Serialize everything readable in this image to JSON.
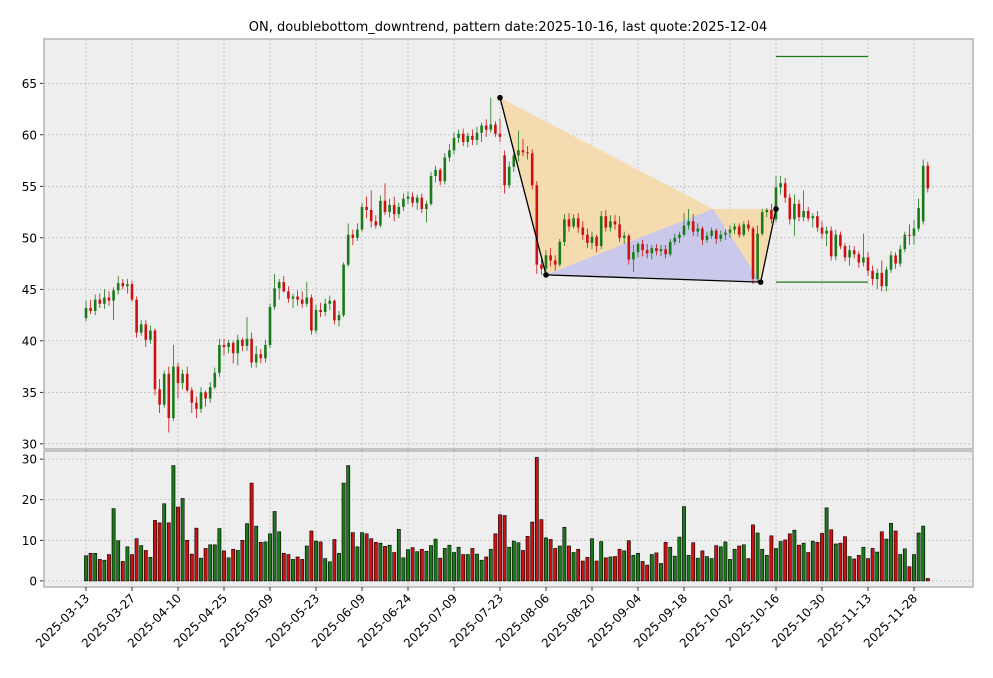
{
  "chart_data": {
    "type": "candlestick",
    "title": "ON, doublebottom_downtrend, pattern date:2025-10-16, last quote:2025-12-04",
    "price_ylim": [
      29.5,
      69.3
    ],
    "price_yticks": [
      30,
      35,
      40,
      45,
      50,
      55,
      60,
      65
    ],
    "volume_ylim": [
      -1.5,
      32
    ],
    "volume_yticks": [
      0,
      10,
      20,
      30
    ],
    "x_date_ticks": [
      "2025-03-13",
      "2025-03-27",
      "2025-04-10",
      "2025-04-25",
      "2025-05-09",
      "2025-05-23",
      "2025-06-09",
      "2025-06-24",
      "2025-07-09",
      "2025-07-23",
      "2025-08-06",
      "2025-08-20",
      "2025-09-04",
      "2025-09-18",
      "2025-10-02",
      "2025-10-16",
      "2025-10-30",
      "2025-11-13",
      "2025-11-28"
    ],
    "grid": true,
    "start_date": "2025-03-13",
    "candles": [
      [
        42.2,
        43.9,
        41.9,
        43.2,
        6.2
      ],
      [
        43.2,
        44.0,
        42.6,
        42.9,
        6.8
      ],
      [
        42.9,
        44.5,
        42.5,
        44.0,
        6.8
      ],
      [
        44.0,
        44.6,
        43.2,
        43.6,
        5.3
      ],
      [
        43.6,
        45.0,
        43.1,
        44.2,
        5.1
      ],
      [
        44.2,
        44.8,
        43.4,
        43.9,
        6.5
      ],
      [
        43.9,
        45.2,
        42.0,
        44.9,
        17.8
      ],
      [
        44.9,
        46.3,
        44.5,
        45.6,
        9.9
      ],
      [
        45.6,
        46.0,
        45.0,
        45.3,
        4.8
      ],
      [
        45.3,
        46.0,
        44.6,
        45.5,
        8.4
      ],
      [
        45.5,
        45.8,
        43.8,
        44.0,
        6.5
      ],
      [
        44.0,
        44.3,
        40.3,
        40.8,
        10.4
      ],
      [
        40.8,
        42.0,
        40.5,
        41.6,
        8.7
      ],
      [
        41.6,
        42.0,
        39.4,
        40.1,
        7.5
      ],
      [
        40.1,
        41.5,
        39.7,
        41.0,
        5.8
      ],
      [
        41.0,
        41.2,
        34.7,
        35.3,
        14.9
      ],
      [
        35.3,
        36.3,
        33.0,
        33.8,
        14.3
      ],
      [
        33.8,
        37.1,
        33.5,
        36.8,
        19.0
      ],
      [
        36.8,
        37.5,
        31.1,
        32.5,
        14.3
      ],
      [
        32.5,
        39.6,
        32.2,
        37.5,
        28.4
      ],
      [
        37.5,
        37.9,
        34.4,
        35.9,
        18.2
      ],
      [
        35.9,
        37.2,
        35.3,
        36.8,
        20.3
      ],
      [
        36.8,
        37.5,
        35.0,
        35.2,
        10.0
      ],
      [
        35.2,
        35.5,
        33.0,
        34.0,
        6.6
      ],
      [
        34.0,
        34.6,
        32.5,
        33.4,
        13.0
      ],
      [
        33.4,
        35.5,
        33.0,
        35.0,
        5.6
      ],
      [
        35.0,
        35.2,
        33.6,
        34.4,
        8.0
      ],
      [
        34.4,
        36.0,
        34.0,
        35.5,
        8.9
      ],
      [
        35.5,
        37.4,
        35.3,
        36.9,
        8.9
      ],
      [
        36.9,
        40.2,
        36.5,
        39.6,
        12.9
      ],
      [
        39.6,
        40.2,
        38.6,
        39.4,
        7.4
      ],
      [
        39.4,
        40.1,
        38.8,
        39.8,
        5.7
      ],
      [
        39.8,
        40.0,
        37.8,
        38.8,
        7.8
      ],
      [
        38.8,
        40.6,
        37.6,
        40.1,
        7.5
      ],
      [
        40.1,
        40.3,
        39.0,
        39.5,
        10.0
      ],
      [
        39.5,
        42.3,
        39.0,
        40.2,
        14.1
      ],
      [
        40.2,
        40.8,
        37.4,
        37.9,
        24.1
      ],
      [
        37.9,
        39.5,
        37.4,
        38.7,
        13.5
      ],
      [
        38.7,
        39.2,
        37.8,
        38.3,
        9.5
      ],
      [
        38.3,
        40.1,
        37.9,
        39.6,
        9.6
      ],
      [
        39.6,
        43.6,
        39.3,
        43.3,
        11.6
      ],
      [
        43.3,
        46.5,
        43.0,
        45.1,
        17.1
      ],
      [
        45.1,
        46.0,
        44.0,
        45.7,
        12.1
      ],
      [
        45.7,
        46.3,
        44.7,
        44.8,
        6.8
      ],
      [
        44.8,
        45.3,
        43.7,
        44.1,
        6.5
      ],
      [
        44.1,
        44.6,
        43.2,
        44.3,
        5.3
      ],
      [
        44.3,
        44.9,
        43.4,
        44.0,
        5.9
      ],
      [
        44.0,
        44.8,
        43.2,
        43.6,
        5.3
      ],
      [
        43.6,
        45.7,
        43.3,
        44.2,
        8.6
      ],
      [
        44.2,
        44.5,
        40.6,
        41.0,
        12.3
      ],
      [
        41.0,
        43.5,
        40.7,
        43.0,
        9.8
      ],
      [
        43.0,
        43.7,
        42.3,
        42.8,
        9.6
      ],
      [
        42.8,
        44.1,
        42.4,
        43.6,
        5.5
      ],
      [
        43.6,
        44.4,
        43.0,
        43.9,
        4.7
      ],
      [
        43.9,
        44.0,
        41.6,
        42.0,
        10.2
      ],
      [
        42.0,
        42.9,
        41.4,
        42.5,
        6.8
      ],
      [
        42.5,
        47.6,
        42.3,
        47.4,
        24.1
      ],
      [
        47.4,
        51.4,
        47.2,
        50.3,
        28.4
      ],
      [
        50.3,
        50.8,
        49.3,
        50.0,
        11.9
      ],
      [
        50.0,
        51.4,
        49.7,
        50.8,
        8.4
      ],
      [
        50.8,
        53.4,
        50.6,
        53.0,
        11.9
      ],
      [
        53.0,
        54.0,
        51.9,
        52.7,
        11.6
      ],
      [
        52.7,
        54.6,
        51.0,
        51.6,
        10.4
      ],
      [
        51.6,
        52.2,
        50.9,
        51.2,
        9.5
      ],
      [
        51.2,
        54.1,
        51.0,
        53.6,
        9.3
      ],
      [
        53.6,
        55.3,
        52.2,
        52.5,
        8.5
      ],
      [
        52.5,
        53.8,
        52.0,
        53.2,
        8.8
      ],
      [
        53.2,
        54.0,
        51.6,
        52.3,
        7.0
      ],
      [
        52.3,
        53.4,
        51.9,
        53.0,
        12.7
      ],
      [
        53.0,
        54.3,
        52.6,
        53.8,
        5.7
      ],
      [
        53.8,
        54.5,
        53.3,
        54.0,
        7.7
      ],
      [
        54.0,
        54.4,
        53.0,
        53.4,
        8.2
      ],
      [
        53.4,
        54.2,
        52.7,
        53.9,
        7.2
      ],
      [
        53.9,
        54.3,
        52.4,
        52.8,
        7.8
      ],
      [
        52.8,
        53.6,
        51.5,
        53.3,
        7.3
      ],
      [
        53.3,
        56.4,
        53.1,
        56.0,
        8.7
      ],
      [
        56.0,
        57.0,
        55.4,
        56.6,
        10.3
      ],
      [
        56.6,
        56.8,
        55.1,
        55.5,
        5.6
      ],
      [
        55.5,
        58.2,
        55.2,
        57.8,
        8.0
      ],
      [
        57.8,
        59.1,
        57.4,
        58.5,
        8.8
      ],
      [
        58.5,
        60.2,
        58.1,
        59.7,
        7.0
      ],
      [
        59.7,
        60.5,
        59.2,
        60.1,
        8.3
      ],
      [
        60.1,
        60.6,
        58.9,
        59.3,
        6.5
      ],
      [
        59.3,
        60.2,
        58.8,
        59.9,
        6.5
      ],
      [
        59.9,
        60.5,
        59.0,
        59.5,
        8.0
      ],
      [
        59.5,
        60.8,
        59.0,
        60.2,
        6.6
      ],
      [
        60.2,
        61.2,
        59.3,
        60.9,
        5.1
      ],
      [
        60.9,
        61.5,
        59.8,
        60.5,
        5.9
      ],
      [
        60.5,
        63.6,
        60.2,
        61.0,
        7.8
      ],
      [
        61.0,
        61.3,
        59.8,
        60.1,
        11.6
      ],
      [
        60.1,
        61.6,
        59.3,
        59.8,
        16.3
      ],
      [
        58.0,
        58.5,
        54.3,
        55.1,
        16.1
      ],
      [
        55.1,
        57.4,
        54.8,
        56.9,
        8.3
      ],
      [
        56.9,
        58.6,
        56.4,
        58.0,
        9.8
      ],
      [
        58.0,
        60.4,
        57.4,
        58.5,
        9.4
      ],
      [
        58.5,
        59.6,
        57.9,
        58.3,
        7.5
      ],
      [
        58.3,
        58.9,
        57.6,
        58.2,
        11.0
      ],
      [
        58.2,
        58.6,
        54.7,
        55.1,
        14.5
      ],
      [
        55.1,
        55.5,
        46.5,
        47.4,
        30.4
      ],
      [
        47.4,
        47.9,
        46.4,
        47.0,
        15.1
      ],
      [
        47.0,
        48.8,
        46.7,
        48.3,
        10.6
      ],
      [
        48.3,
        49.0,
        47.2,
        47.8,
        10.2
      ],
      [
        47.8,
        48.3,
        46.8,
        47.4,
        8.0
      ],
      [
        47.4,
        49.9,
        47.2,
        49.6,
        8.6
      ],
      [
        49.6,
        52.3,
        49.2,
        51.8,
        13.2
      ],
      [
        51.8,
        52.4,
        50.6,
        51.1,
        8.6
      ],
      [
        51.1,
        52.3,
        50.9,
        51.9,
        7.0
      ],
      [
        51.9,
        52.4,
        50.5,
        51.0,
        7.8
      ],
      [
        51.0,
        51.6,
        49.8,
        50.3,
        4.9
      ],
      [
        50.3,
        50.9,
        49.0,
        49.5,
        5.8
      ],
      [
        49.5,
        50.6,
        48.9,
        50.1,
        10.4
      ],
      [
        50.1,
        50.3,
        48.6,
        49.2,
        4.9
      ],
      [
        49.2,
        52.6,
        48.9,
        52.1,
        9.7
      ],
      [
        52.1,
        52.7,
        50.6,
        51.0,
        5.7
      ],
      [
        51.0,
        52.2,
        50.6,
        51.6,
        5.9
      ],
      [
        51.6,
        52.2,
        50.8,
        51.3,
        6.0
      ],
      [
        51.3,
        52.1,
        49.6,
        50.0,
        7.8
      ],
      [
        50.0,
        50.6,
        49.4,
        50.2,
        7.4
      ],
      [
        50.2,
        50.4,
        47.4,
        47.9,
        9.9
      ],
      [
        47.9,
        49.3,
        46.7,
        48.6,
        6.3
      ],
      [
        48.6,
        49.6,
        48.1,
        49.4,
        6.8
      ],
      [
        49.4,
        49.8,
        48.2,
        48.8,
        4.8
      ],
      [
        48.8,
        49.4,
        48.0,
        48.5,
        3.9
      ],
      [
        48.5,
        49.3,
        47.9,
        49.0,
        6.5
      ],
      [
        49.0,
        49.4,
        48.3,
        48.7,
        6.9
      ],
      [
        48.7,
        49.3,
        48.2,
        48.9,
        4.3
      ],
      [
        48.9,
        49.3,
        48.0,
        48.4,
        9.5
      ],
      [
        48.4,
        49.9,
        48.2,
        49.6,
        8.3
      ],
      [
        49.6,
        50.4,
        49.3,
        50.0,
        6.1
      ],
      [
        50.0,
        50.6,
        49.5,
        50.3,
        10.8
      ],
      [
        50.3,
        52.4,
        50.1,
        51.2,
        18.3
      ],
      [
        51.2,
        52.8,
        50.8,
        51.6,
        6.3
      ],
      [
        51.6,
        52.3,
        50.2,
        50.6,
        9.4
      ],
      [
        50.6,
        51.4,
        50.1,
        50.9,
        5.6
      ],
      [
        50.9,
        51.1,
        49.3,
        49.8,
        7.4
      ],
      [
        49.8,
        50.6,
        49.5,
        50.2,
        6.0
      ],
      [
        50.2,
        51.0,
        49.9,
        50.7,
        5.5
      ],
      [
        50.7,
        50.9,
        49.4,
        49.9,
        8.7
      ],
      [
        49.9,
        50.7,
        49.6,
        50.3,
        8.4
      ],
      [
        50.3,
        50.8,
        49.8,
        50.5,
        9.6
      ],
      [
        50.5,
        51.2,
        50.0,
        50.8,
        5.3
      ],
      [
        50.8,
        51.4,
        50.4,
        51.1,
        7.8
      ],
      [
        51.1,
        51.4,
        50.0,
        50.3,
        8.6
      ],
      [
        50.3,
        51.6,
        50.1,
        51.3,
        8.9
      ],
      [
        51.3,
        51.7,
        50.6,
        50.9,
        5.5
      ],
      [
        50.9,
        51.1,
        45.5,
        46.0,
        13.8
      ],
      [
        46.0,
        51.2,
        45.8,
        50.4,
        11.8
      ],
      [
        50.4,
        52.8,
        50.2,
        52.5,
        7.8
      ],
      [
        52.5,
        52.9,
        52.0,
        52.7,
        6.3
      ],
      [
        52.7,
        53.3,
        51.4,
        51.8,
        11.1
      ],
      [
        51.8,
        56.0,
        51.5,
        54.9,
        8.0
      ],
      [
        54.9,
        56.0,
        54.2,
        55.3,
        9.7
      ],
      [
        55.3,
        55.8,
        53.4,
        53.9,
        10.1
      ],
      [
        53.9,
        54.3,
        51.3,
        51.8,
        11.6
      ],
      [
        51.8,
        54.2,
        50.2,
        53.3,
        12.5
      ],
      [
        53.3,
        53.7,
        51.6,
        52.0,
        8.8
      ],
      [
        52.0,
        54.6,
        51.6,
        52.6,
        9.3
      ],
      [
        52.6,
        53.0,
        51.6,
        51.9,
        7.0
      ],
      [
        51.9,
        52.4,
        51.0,
        52.1,
        9.8
      ],
      [
        52.1,
        52.6,
        50.6,
        51.0,
        9.5
      ],
      [
        51.0,
        51.6,
        49.9,
        50.4,
        11.7
      ],
      [
        50.4,
        51.1,
        49.2,
        50.7,
        18.0
      ],
      [
        50.7,
        51.1,
        47.8,
        48.2,
        12.6
      ],
      [
        48.2,
        50.8,
        47.8,
        50.3,
        9.1
      ],
      [
        50.3,
        50.6,
        48.9,
        49.2,
        9.3
      ],
      [
        49.2,
        49.5,
        47.7,
        48.1,
        10.9
      ],
      [
        48.1,
        49.3,
        47.3,
        48.8,
        6.0
      ],
      [
        48.8,
        49.2,
        48.0,
        48.4,
        5.4
      ],
      [
        48.4,
        48.7,
        47.1,
        47.6,
        6.3
      ],
      [
        47.6,
        50.4,
        47.2,
        48.1,
        8.3
      ],
      [
        48.1,
        48.6,
        46.3,
        46.8,
        5.5
      ],
      [
        46.8,
        47.3,
        45.4,
        46.0,
        8.0
      ],
      [
        46.0,
        47.0,
        45.0,
        46.6,
        7.1
      ],
      [
        46.6,
        47.8,
        44.8,
        45.3,
        12.1
      ],
      [
        45.3,
        47.2,
        44.8,
        46.9,
        10.3
      ],
      [
        46.9,
        48.7,
        46.6,
        48.3,
        14.2
      ],
      [
        48.3,
        48.6,
        47.0,
        47.5,
        12.3
      ],
      [
        47.5,
        49.3,
        47.2,
        48.9,
        6.5
      ],
      [
        48.9,
        50.6,
        48.6,
        50.3,
        7.9
      ],
      [
        50.3,
        51.3,
        49.3,
        50.2,
        3.5
      ],
      [
        50.2,
        51.7,
        49.3,
        50.9,
        6.5
      ],
      [
        50.9,
        53.8,
        50.6,
        52.9,
        11.8
      ],
      [
        51.6,
        57.6,
        51.3,
        57.0,
        13.5
      ],
      [
        57.0,
        57.4,
        54.4,
        54.8,
        0.6
      ]
    ],
    "pattern_points": [
      {
        "date": "2025-07-23",
        "price": 63.6
      },
      {
        "date": "2025-08-06",
        "price": 46.4
      },
      {
        "date": "2025-10-12",
        "price": 45.7
      },
      {
        "date": "2025-10-16",
        "price": 52.8
      }
    ],
    "pattern_polygons": [
      {
        "color": "#f5d8a8",
        "points": [
          {
            "date": "2025-07-23",
            "price": 63.6
          },
          {
            "date": "2025-09-27",
            "price": 52.8
          },
          {
            "date": "2025-10-16",
            "price": 52.8
          },
          {
            "date": "2025-10-12",
            "price": 45.7
          },
          {
            "date": "2025-08-06",
            "price": 46.4
          }
        ]
      },
      {
        "color": "#c7c7f2",
        "points": [
          {
            "date": "2025-08-06",
            "price": 46.4
          },
          {
            "date": "2025-09-27",
            "price": 52.8
          },
          {
            "date": "2025-10-12",
            "price": 45.7
          }
        ]
      }
    ],
    "reference_lines": [
      {
        "price": 67.6,
        "from": "2025-10-16",
        "to": "2025-11-13",
        "color": "#1a7a1a"
      },
      {
        "price": 45.7,
        "from": "2025-10-16",
        "to": "2025-11-13",
        "color": "#1a7a1a"
      }
    ],
    "colors": {
      "up": "#1a7a1a",
      "down": "#cc1111",
      "pattern_line": "#000000",
      "panel_bg": "#eeeeee",
      "grid": "#b0b0b0"
    }
  }
}
